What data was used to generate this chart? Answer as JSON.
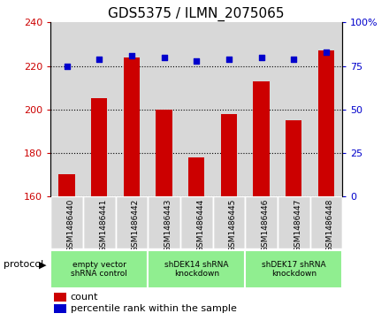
{
  "title": "GDS5375 / ILMN_2075065",
  "samples": [
    "GSM1486440",
    "GSM1486441",
    "GSM1486442",
    "GSM1486443",
    "GSM1486444",
    "GSM1486445",
    "GSM1486446",
    "GSM1486447",
    "GSM1486448"
  ],
  "counts": [
    170,
    205,
    224,
    200,
    178,
    198,
    213,
    195,
    227
  ],
  "percentile_ranks": [
    75,
    79,
    81,
    80,
    78,
    79,
    80,
    79,
    83
  ],
  "ylim_left": [
    160,
    240
  ],
  "ylim_right": [
    0,
    100
  ],
  "yticks_left": [
    160,
    180,
    200,
    220,
    240
  ],
  "yticks_right": [
    0,
    25,
    50,
    75,
    100
  ],
  "bar_color": "#cc0000",
  "dot_color": "#0000cc",
  "groups": [
    {
      "label": "empty vector\nshRNA control",
      "start": 0,
      "end": 3,
      "color": "#90ee90"
    },
    {
      "label": "shDEK14 shRNA\nknockdown",
      "start": 3,
      "end": 6,
      "color": "#90ee90"
    },
    {
      "label": "shDEK17 shRNA\nknockdown",
      "start": 6,
      "end": 9,
      "color": "#90ee90"
    }
  ],
  "legend_count_label": "count",
  "legend_pct_label": "percentile rank within the sample",
  "protocol_label": "protocol",
  "col_bg_color": "#d8d8d8",
  "plot_bg_color": "#ffffff",
  "title_fontsize": 11,
  "tick_fontsize": 8,
  "sample_fontsize": 6.5
}
